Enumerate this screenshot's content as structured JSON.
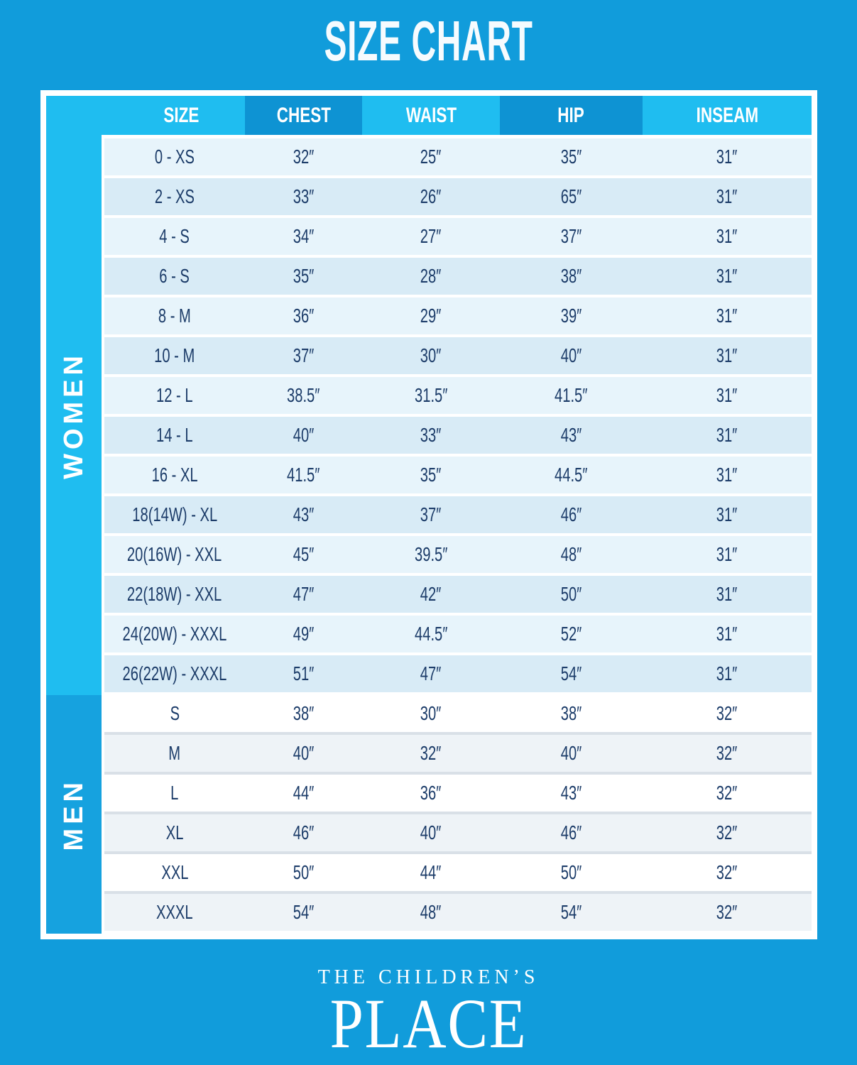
{
  "title": "SIZE CHART",
  "chart_data": {
    "type": "table",
    "title": "SIZE CHART",
    "unit": "inches",
    "columns": [
      "SIZE",
      "CHEST",
      "WAIST",
      "HIP",
      "INSEAM"
    ],
    "sections": [
      {
        "label": "WOMEN",
        "rows": [
          {
            "size": "0 - XS",
            "chest": "32″",
            "waist": "25″",
            "hip": "35″",
            "inseam": "31″"
          },
          {
            "size": "2 - XS",
            "chest": "33″",
            "waist": "26″",
            "hip": "65″",
            "inseam": "31″"
          },
          {
            "size": "4 - S",
            "chest": "34″",
            "waist": "27″",
            "hip": "37″",
            "inseam": "31″"
          },
          {
            "size": "6 - S",
            "chest": "35″",
            "waist": "28″",
            "hip": "38″",
            "inseam": "31″"
          },
          {
            "size": "8 - M",
            "chest": "36″",
            "waist": "29″",
            "hip": "39″",
            "inseam": "31″"
          },
          {
            "size": "10 - M",
            "chest": "37″",
            "waist": "30″",
            "hip": "40″",
            "inseam": "31″"
          },
          {
            "size": "12 - L",
            "chest": "38.5″",
            "waist": "31.5″",
            "hip": "41.5″",
            "inseam": "31″"
          },
          {
            "size": "14 - L",
            "chest": "40″",
            "waist": "33″",
            "hip": "43″",
            "inseam": "31″"
          },
          {
            "size": "16 - XL",
            "chest": "41.5″",
            "waist": "35″",
            "hip": "44.5″",
            "inseam": "31″"
          },
          {
            "size": "18(14W) - XL",
            "chest": "43″",
            "waist": "37″",
            "hip": "46″",
            "inseam": "31″"
          },
          {
            "size": "20(16W) - XXL",
            "chest": "45″",
            "waist": "39.5″",
            "hip": "48″",
            "inseam": "31″"
          },
          {
            "size": "22(18W) - XXL",
            "chest": "47″",
            "waist": "42″",
            "hip": "50″",
            "inseam": "31″"
          },
          {
            "size": "24(20W) - XXXL",
            "chest": "49″",
            "waist": "44.5″",
            "hip": "52″",
            "inseam": "31″"
          },
          {
            "size": "26(22W) - XXXL",
            "chest": "51″",
            "waist": "47″",
            "hip": "54″",
            "inseam": "31″"
          }
        ]
      },
      {
        "label": "MEN",
        "rows": [
          {
            "size": "S",
            "chest": "38″",
            "waist": "30″",
            "hip": "38″",
            "inseam": "32″"
          },
          {
            "size": "M",
            "chest": "40″",
            "waist": "32″",
            "hip": "40″",
            "inseam": "32″"
          },
          {
            "size": "L",
            "chest": "44″",
            "waist": "36″",
            "hip": "43″",
            "inseam": "32″"
          },
          {
            "size": "XL",
            "chest": "46″",
            "waist": "40″",
            "hip": "46″",
            "inseam": "32″"
          },
          {
            "size": "XXL",
            "chest": "50″",
            "waist": "44″",
            "hip": "50″",
            "inseam": "32″"
          },
          {
            "size": "XXXL",
            "chest": "54″",
            "waist": "48″",
            "hip": "54″",
            "inseam": "32″"
          }
        ]
      }
    ]
  },
  "brand": {
    "line1": "THE CHILDREN’S",
    "line2": "PLACE"
  },
  "colors": {
    "page_background": "#119cdb",
    "header_cyan": "#1fbdf0",
    "header_dark": "#0e93d3",
    "women_sidebar": "#1fbdf0",
    "men_sidebar": "#16a2df",
    "women_row_light": "#e7f4fb",
    "women_row_dark": "#d8ebf6",
    "men_row_light": "#ffffff",
    "men_row_dark": "#eef3f7",
    "text_navy": "#1c3c69",
    "text_white": "#ffffff"
  }
}
